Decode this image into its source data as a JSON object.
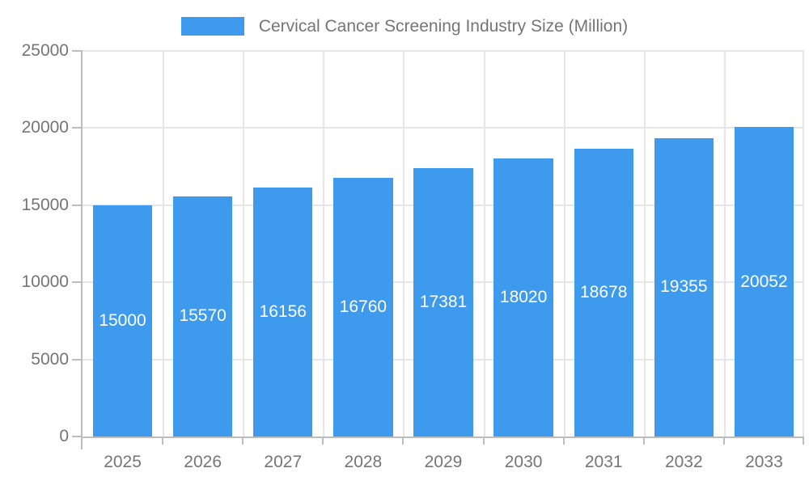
{
  "legend": {
    "label": "Cervical Cancer Screening Industry Size (Million)"
  },
  "colors": {
    "bar": "#3D9AED",
    "bar_label": "#ffffff",
    "axis_text": "#757575",
    "grid": "#e6e6e6",
    "axis_line": "#bdbdbd"
  },
  "chart_data": {
    "type": "bar",
    "title": "Cervical Cancer Screening Industry Size (Million)",
    "categories": [
      "2025",
      "2026",
      "2027",
      "2028",
      "2029",
      "2030",
      "2031",
      "2032",
      "2033"
    ],
    "values": [
      15000,
      15570,
      16156,
      16760,
      17381,
      18020,
      18678,
      19355,
      20052
    ],
    "xlabel": "",
    "ylabel": "",
    "ylim": [
      0,
      25000
    ],
    "yticks": [
      0,
      5000,
      10000,
      15000,
      20000,
      25000
    ],
    "grid": true,
    "legend_position": "top-center",
    "bar_value_labels": true
  }
}
